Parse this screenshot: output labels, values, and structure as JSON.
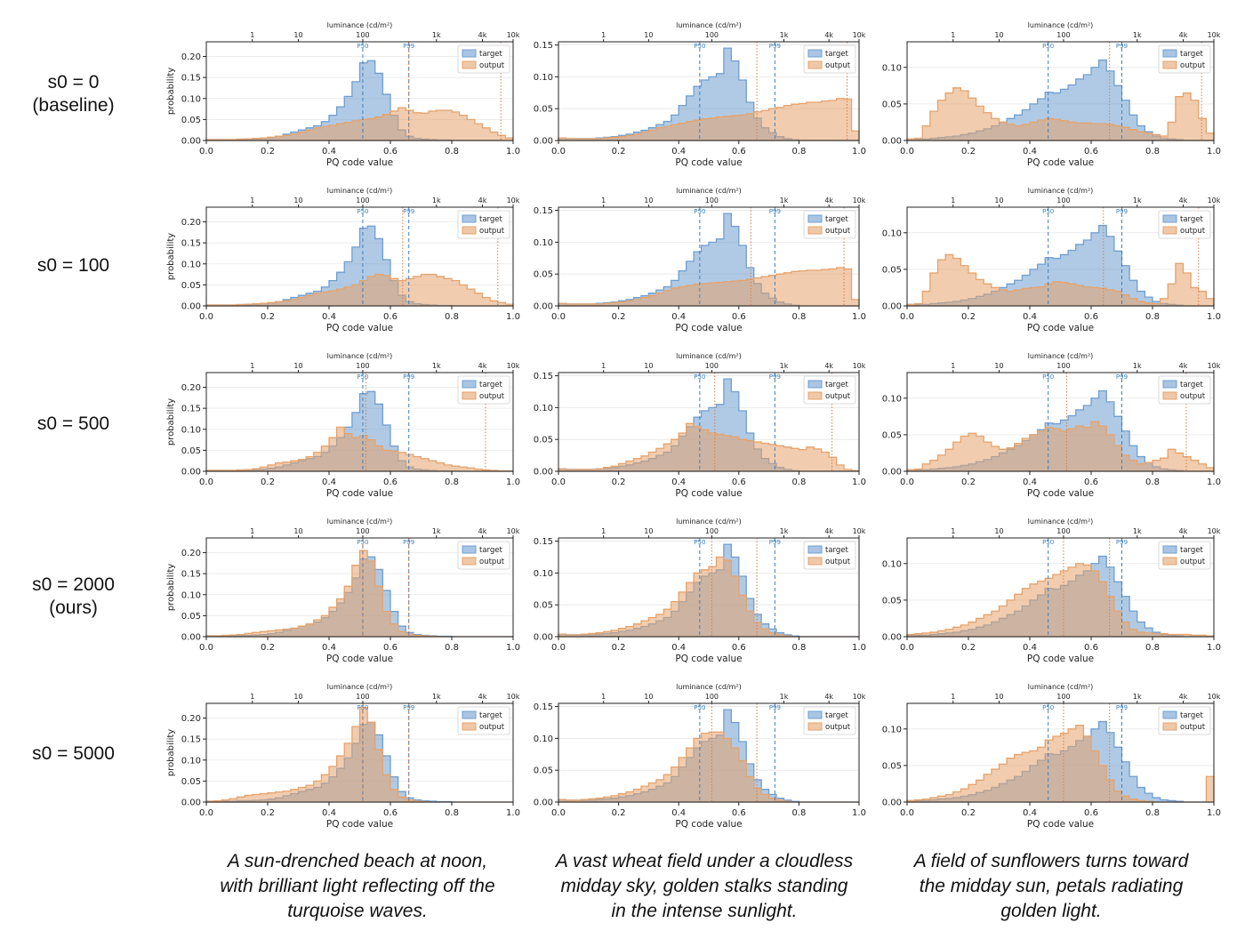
{
  "row_labels": [
    {
      "line1": "s0 = 0",
      "line2": "(baseline)"
    },
    {
      "line1": "s0 = 100",
      "line2": ""
    },
    {
      "line1": "s0 = 500",
      "line2": ""
    },
    {
      "line1": "s0 = 2000",
      "line2": "(ours)"
    },
    {
      "line1": "s0 = 5000",
      "line2": ""
    }
  ],
  "captions": [
    {
      "l1": "A sun-drenched beach at noon,",
      "l2": "with brilliant light reflecting off the",
      "l3": "turquoise waves."
    },
    {
      "l1": "A vast wheat field under a cloudless",
      "l2": "midday sky, golden stalks standing",
      "l3": "in the intense sunlight."
    },
    {
      "l1": "A field of sunflowers turns toward",
      "l2": "the midday sun, petals radiating",
      "l3": "golden light."
    }
  ],
  "colors": {
    "target": "#6f9fd0",
    "output": "#e5a36c",
    "p50": "#3d7fc0",
    "p_output": "#d97a4a"
  },
  "chart_data": {
    "type": "histogram-grid",
    "xlabel": "PQ code value",
    "ylabel": "probability",
    "top_axis_label": "luminance (cd/m²)",
    "top_ticks": [
      {
        "label": "1",
        "pq": 0.15
      },
      {
        "label": "10",
        "pq": 0.3
      },
      {
        "label": "100",
        "pq": 0.51
      },
      {
        "label": "1k",
        "pq": 0.75
      },
      {
        "label": "4k",
        "pq": 0.9
      },
      {
        "label": "10k",
        "pq": 1.0
      }
    ],
    "x_ticks": [
      "0.0",
      "0.2",
      "0.4",
      "0.6",
      "0.8",
      "1.0"
    ],
    "legend": [
      "target",
      "output"
    ],
    "percentile_labels": [
      "P50",
      "P99"
    ],
    "columns": [
      {
        "ylim": [
          0,
          0.235
        ],
        "yticks": [
          "0.00",
          "0.05",
          "0.10",
          "0.15",
          "0.20"
        ],
        "p50": 0.51,
        "p99": 0.66,
        "target": [
          0.002,
          0.002,
          0.002,
          0.002,
          0.003,
          0.003,
          0.004,
          0.005,
          0.007,
          0.01,
          0.015,
          0.02,
          0.025,
          0.03,
          0.035,
          0.045,
          0.06,
          0.08,
          0.105,
          0.14,
          0.185,
          0.19,
          0.16,
          0.11,
          0.06,
          0.025,
          0.01,
          0.005,
          0.003,
          0.002,
          0.001,
          0.001,
          0.0,
          0.0,
          0.0,
          0.0,
          0.0,
          0.0,
          0.0,
          0.0
        ]
      },
      {
        "ylim": [
          0,
          0.155
        ],
        "yticks": [
          "0.00",
          "0.05",
          "0.10",
          "0.15"
        ],
        "p50": 0.47,
        "p99": 0.72,
        "target": [
          0.004,
          0.003,
          0.003,
          0.003,
          0.003,
          0.004,
          0.005,
          0.006,
          0.008,
          0.01,
          0.013,
          0.016,
          0.02,
          0.025,
          0.03,
          0.04,
          0.055,
          0.07,
          0.085,
          0.095,
          0.1,
          0.105,
          0.145,
          0.125,
          0.095,
          0.06,
          0.035,
          0.02,
          0.012,
          0.006,
          0.003,
          0.001,
          0.0,
          0.0,
          0.0,
          0.0,
          0.0,
          0.0,
          0.0,
          0.0
        ]
      },
      {
        "ylim": [
          0,
          0.135
        ],
        "yticks": [
          "0.00",
          "0.05",
          "0.10"
        ],
        "p50": 0.46,
        "p99": 0.7,
        "target": [
          0.002,
          0.002,
          0.002,
          0.003,
          0.004,
          0.005,
          0.006,
          0.008,
          0.01,
          0.013,
          0.016,
          0.02,
          0.025,
          0.03,
          0.035,
          0.042,
          0.05,
          0.057,
          0.066,
          0.065,
          0.07,
          0.076,
          0.084,
          0.09,
          0.1,
          0.11,
          0.095,
          0.075,
          0.055,
          0.035,
          0.02,
          0.012,
          0.006,
          0.003,
          0.002,
          0.001,
          0.0,
          0.0,
          0.0,
          0.0
        ]
      }
    ],
    "rows": [
      {
        "name": "s0 = 0",
        "output_markers": [
          0.66,
          0.96
        ],
        "outputs": [
          [
            0.002,
            0.002,
            0.002,
            0.002,
            0.003,
            0.004,
            0.005,
            0.006,
            0.008,
            0.01,
            0.012,
            0.015,
            0.02,
            0.025,
            0.03,
            0.033,
            0.036,
            0.04,
            0.043,
            0.047,
            0.05,
            0.052,
            0.056,
            0.062,
            0.07,
            0.078,
            0.072,
            0.066,
            0.065,
            0.07,
            0.072,
            0.072,
            0.068,
            0.06,
            0.05,
            0.04,
            0.03,
            0.02,
            0.012,
            0.006
          ],
          [
            0.004,
            0.003,
            0.003,
            0.003,
            0.003,
            0.003,
            0.004,
            0.005,
            0.006,
            0.008,
            0.01,
            0.013,
            0.016,
            0.02,
            0.022,
            0.025,
            0.027,
            0.03,
            0.032,
            0.034,
            0.035,
            0.037,
            0.038,
            0.039,
            0.04,
            0.042,
            0.045,
            0.047,
            0.05,
            0.052,
            0.055,
            0.057,
            0.058,
            0.06,
            0.06,
            0.062,
            0.063,
            0.066,
            0.065,
            0.015
          ],
          [
            0.002,
            0.003,
            0.02,
            0.04,
            0.055,
            0.065,
            0.072,
            0.068,
            0.058,
            0.047,
            0.038,
            0.03,
            0.025,
            0.022,
            0.02,
            0.022,
            0.025,
            0.028,
            0.03,
            0.029,
            0.027,
            0.025,
            0.024,
            0.024,
            0.023,
            0.023,
            0.022,
            0.02,
            0.018,
            0.015,
            0.012,
            0.01,
            0.008,
            0.006,
            0.025,
            0.06,
            0.065,
            0.055,
            0.03,
            0.01
          ]
        ]
      },
      {
        "name": "s0 = 100",
        "output_markers": [
          0.64,
          0.95
        ],
        "outputs": [
          [
            0.002,
            0.002,
            0.002,
            0.002,
            0.003,
            0.004,
            0.005,
            0.006,
            0.008,
            0.01,
            0.012,
            0.015,
            0.02,
            0.025,
            0.03,
            0.033,
            0.036,
            0.04,
            0.045,
            0.05,
            0.06,
            0.07,
            0.075,
            0.072,
            0.065,
            0.06,
            0.065,
            0.07,
            0.075,
            0.075,
            0.07,
            0.065,
            0.06,
            0.05,
            0.04,
            0.03,
            0.02,
            0.012,
            0.008,
            0.004
          ],
          [
            0.004,
            0.003,
            0.003,
            0.003,
            0.003,
            0.003,
            0.004,
            0.005,
            0.006,
            0.008,
            0.01,
            0.013,
            0.016,
            0.02,
            0.024,
            0.028,
            0.03,
            0.032,
            0.034,
            0.035,
            0.036,
            0.037,
            0.038,
            0.039,
            0.04,
            0.042,
            0.044,
            0.046,
            0.048,
            0.05,
            0.052,
            0.054,
            0.055,
            0.056,
            0.056,
            0.057,
            0.058,
            0.06,
            0.058,
            0.01
          ],
          [
            0.002,
            0.003,
            0.02,
            0.045,
            0.063,
            0.07,
            0.065,
            0.055,
            0.045,
            0.036,
            0.03,
            0.025,
            0.022,
            0.02,
            0.022,
            0.024,
            0.025,
            0.026,
            0.03,
            0.033,
            0.032,
            0.03,
            0.028,
            0.026,
            0.025,
            0.024,
            0.022,
            0.02,
            0.015,
            0.01,
            0.006,
            0.004,
            0.003,
            0.01,
            0.03,
            0.058,
            0.045,
            0.025,
            0.02,
            0.01
          ]
        ]
      },
      {
        "name": "s0 = 500",
        "output_markers": [
          0.52,
          0.91
        ],
        "outputs": [
          [
            0.002,
            0.002,
            0.002,
            0.002,
            0.003,
            0.004,
            0.006,
            0.01,
            0.015,
            0.02,
            0.022,
            0.025,
            0.028,
            0.035,
            0.045,
            0.06,
            0.08,
            0.105,
            0.09,
            0.08,
            0.085,
            0.075,
            0.06,
            0.05,
            0.048,
            0.045,
            0.04,
            0.035,
            0.03,
            0.025,
            0.02,
            0.015,
            0.012,
            0.01,
            0.008,
            0.005,
            0.003,
            0.002,
            0.001,
            0.001
          ],
          [
            0.004,
            0.003,
            0.003,
            0.003,
            0.003,
            0.004,
            0.006,
            0.008,
            0.012,
            0.016,
            0.02,
            0.024,
            0.03,
            0.036,
            0.043,
            0.05,
            0.06,
            0.075,
            0.07,
            0.065,
            0.06,
            0.058,
            0.056,
            0.054,
            0.05,
            0.048,
            0.046,
            0.044,
            0.042,
            0.04,
            0.038,
            0.036,
            0.034,
            0.038,
            0.035,
            0.03,
            0.022,
            0.01,
            0.003,
            0.001
          ],
          [
            0.002,
            0.003,
            0.01,
            0.015,
            0.022,
            0.03,
            0.04,
            0.048,
            0.052,
            0.048,
            0.04,
            0.034,
            0.03,
            0.032,
            0.038,
            0.045,
            0.05,
            0.055,
            0.06,
            0.058,
            0.055,
            0.058,
            0.062,
            0.06,
            0.068,
            0.062,
            0.05,
            0.035,
            0.022,
            0.015,
            0.01,
            0.012,
            0.015,
            0.018,
            0.03,
            0.025,
            0.02,
            0.015,
            0.01,
            0.005
          ]
        ]
      },
      {
        "name": "s0 = 2000",
        "output_markers": [
          0.51,
          0.66
        ],
        "outputs": [
          [
            0.002,
            0.002,
            0.003,
            0.004,
            0.005,
            0.008,
            0.01,
            0.012,
            0.014,
            0.016,
            0.018,
            0.02,
            0.025,
            0.03,
            0.04,
            0.05,
            0.07,
            0.09,
            0.12,
            0.17,
            0.205,
            0.18,
            0.12,
            0.06,
            0.03,
            0.012,
            0.006,
            0.003,
            0.002,
            0.001,
            0.0,
            0.0,
            0.0,
            0.0,
            0.0,
            0.0,
            0.0,
            0.0,
            0.0,
            0.0
          ],
          [
            0.004,
            0.003,
            0.003,
            0.004,
            0.005,
            0.006,
            0.008,
            0.01,
            0.013,
            0.016,
            0.02,
            0.025,
            0.03,
            0.035,
            0.043,
            0.055,
            0.07,
            0.085,
            0.1,
            0.105,
            0.11,
            0.125,
            0.12,
            0.095,
            0.065,
            0.04,
            0.022,
            0.012,
            0.006,
            0.003,
            0.001,
            0.0,
            0.0,
            0.0,
            0.0,
            0.0,
            0.0,
            0.0,
            0.0,
            0.0
          ],
          [
            0.003,
            0.004,
            0.005,
            0.006,
            0.008,
            0.01,
            0.013,
            0.016,
            0.02,
            0.025,
            0.03,
            0.035,
            0.042,
            0.05,
            0.058,
            0.066,
            0.072,
            0.076,
            0.08,
            0.085,
            0.09,
            0.095,
            0.1,
            0.098,
            0.09,
            0.075,
            0.055,
            0.035,
            0.02,
            0.01,
            0.006,
            0.005,
            0.004,
            0.004,
            0.003,
            0.003,
            0.003,
            0.002,
            0.002,
            0.001
          ]
        ]
      },
      {
        "name": "s0 = 5000",
        "output_markers": [
          0.51,
          0.66
        ],
        "outputs": [
          [
            0.002,
            0.003,
            0.005,
            0.008,
            0.012,
            0.016,
            0.018,
            0.02,
            0.022,
            0.024,
            0.026,
            0.03,
            0.035,
            0.04,
            0.05,
            0.065,
            0.085,
            0.11,
            0.14,
            0.18,
            0.225,
            0.19,
            0.125,
            0.065,
            0.03,
            0.012,
            0.005,
            0.002,
            0.001,
            0.0,
            0.0,
            0.0,
            0.0,
            0.0,
            0.0,
            0.0,
            0.0,
            0.0,
            0.0,
            0.0
          ],
          [
            0.004,
            0.003,
            0.003,
            0.004,
            0.005,
            0.006,
            0.008,
            0.01,
            0.013,
            0.016,
            0.02,
            0.025,
            0.03,
            0.035,
            0.043,
            0.055,
            0.07,
            0.085,
            0.1,
            0.108,
            0.11,
            0.11,
            0.1,
            0.085,
            0.065,
            0.04,
            0.022,
            0.012,
            0.006,
            0.003,
            0.001,
            0.0,
            0.0,
            0.0,
            0.0,
            0.0,
            0.0,
            0.0,
            0.0,
            0.0
          ],
          [
            0.002,
            0.003,
            0.004,
            0.006,
            0.008,
            0.01,
            0.014,
            0.018,
            0.024,
            0.03,
            0.038,
            0.045,
            0.052,
            0.06,
            0.065,
            0.068,
            0.07,
            0.075,
            0.085,
            0.09,
            0.094,
            0.1,
            0.105,
            0.09,
            0.07,
            0.05,
            0.03,
            0.015,
            0.008,
            0.004,
            0.002,
            0.001,
            0.0,
            0.0,
            0.0,
            0.0,
            0.0,
            0.0,
            0.0,
            0.035
          ]
        ]
      }
    ]
  }
}
